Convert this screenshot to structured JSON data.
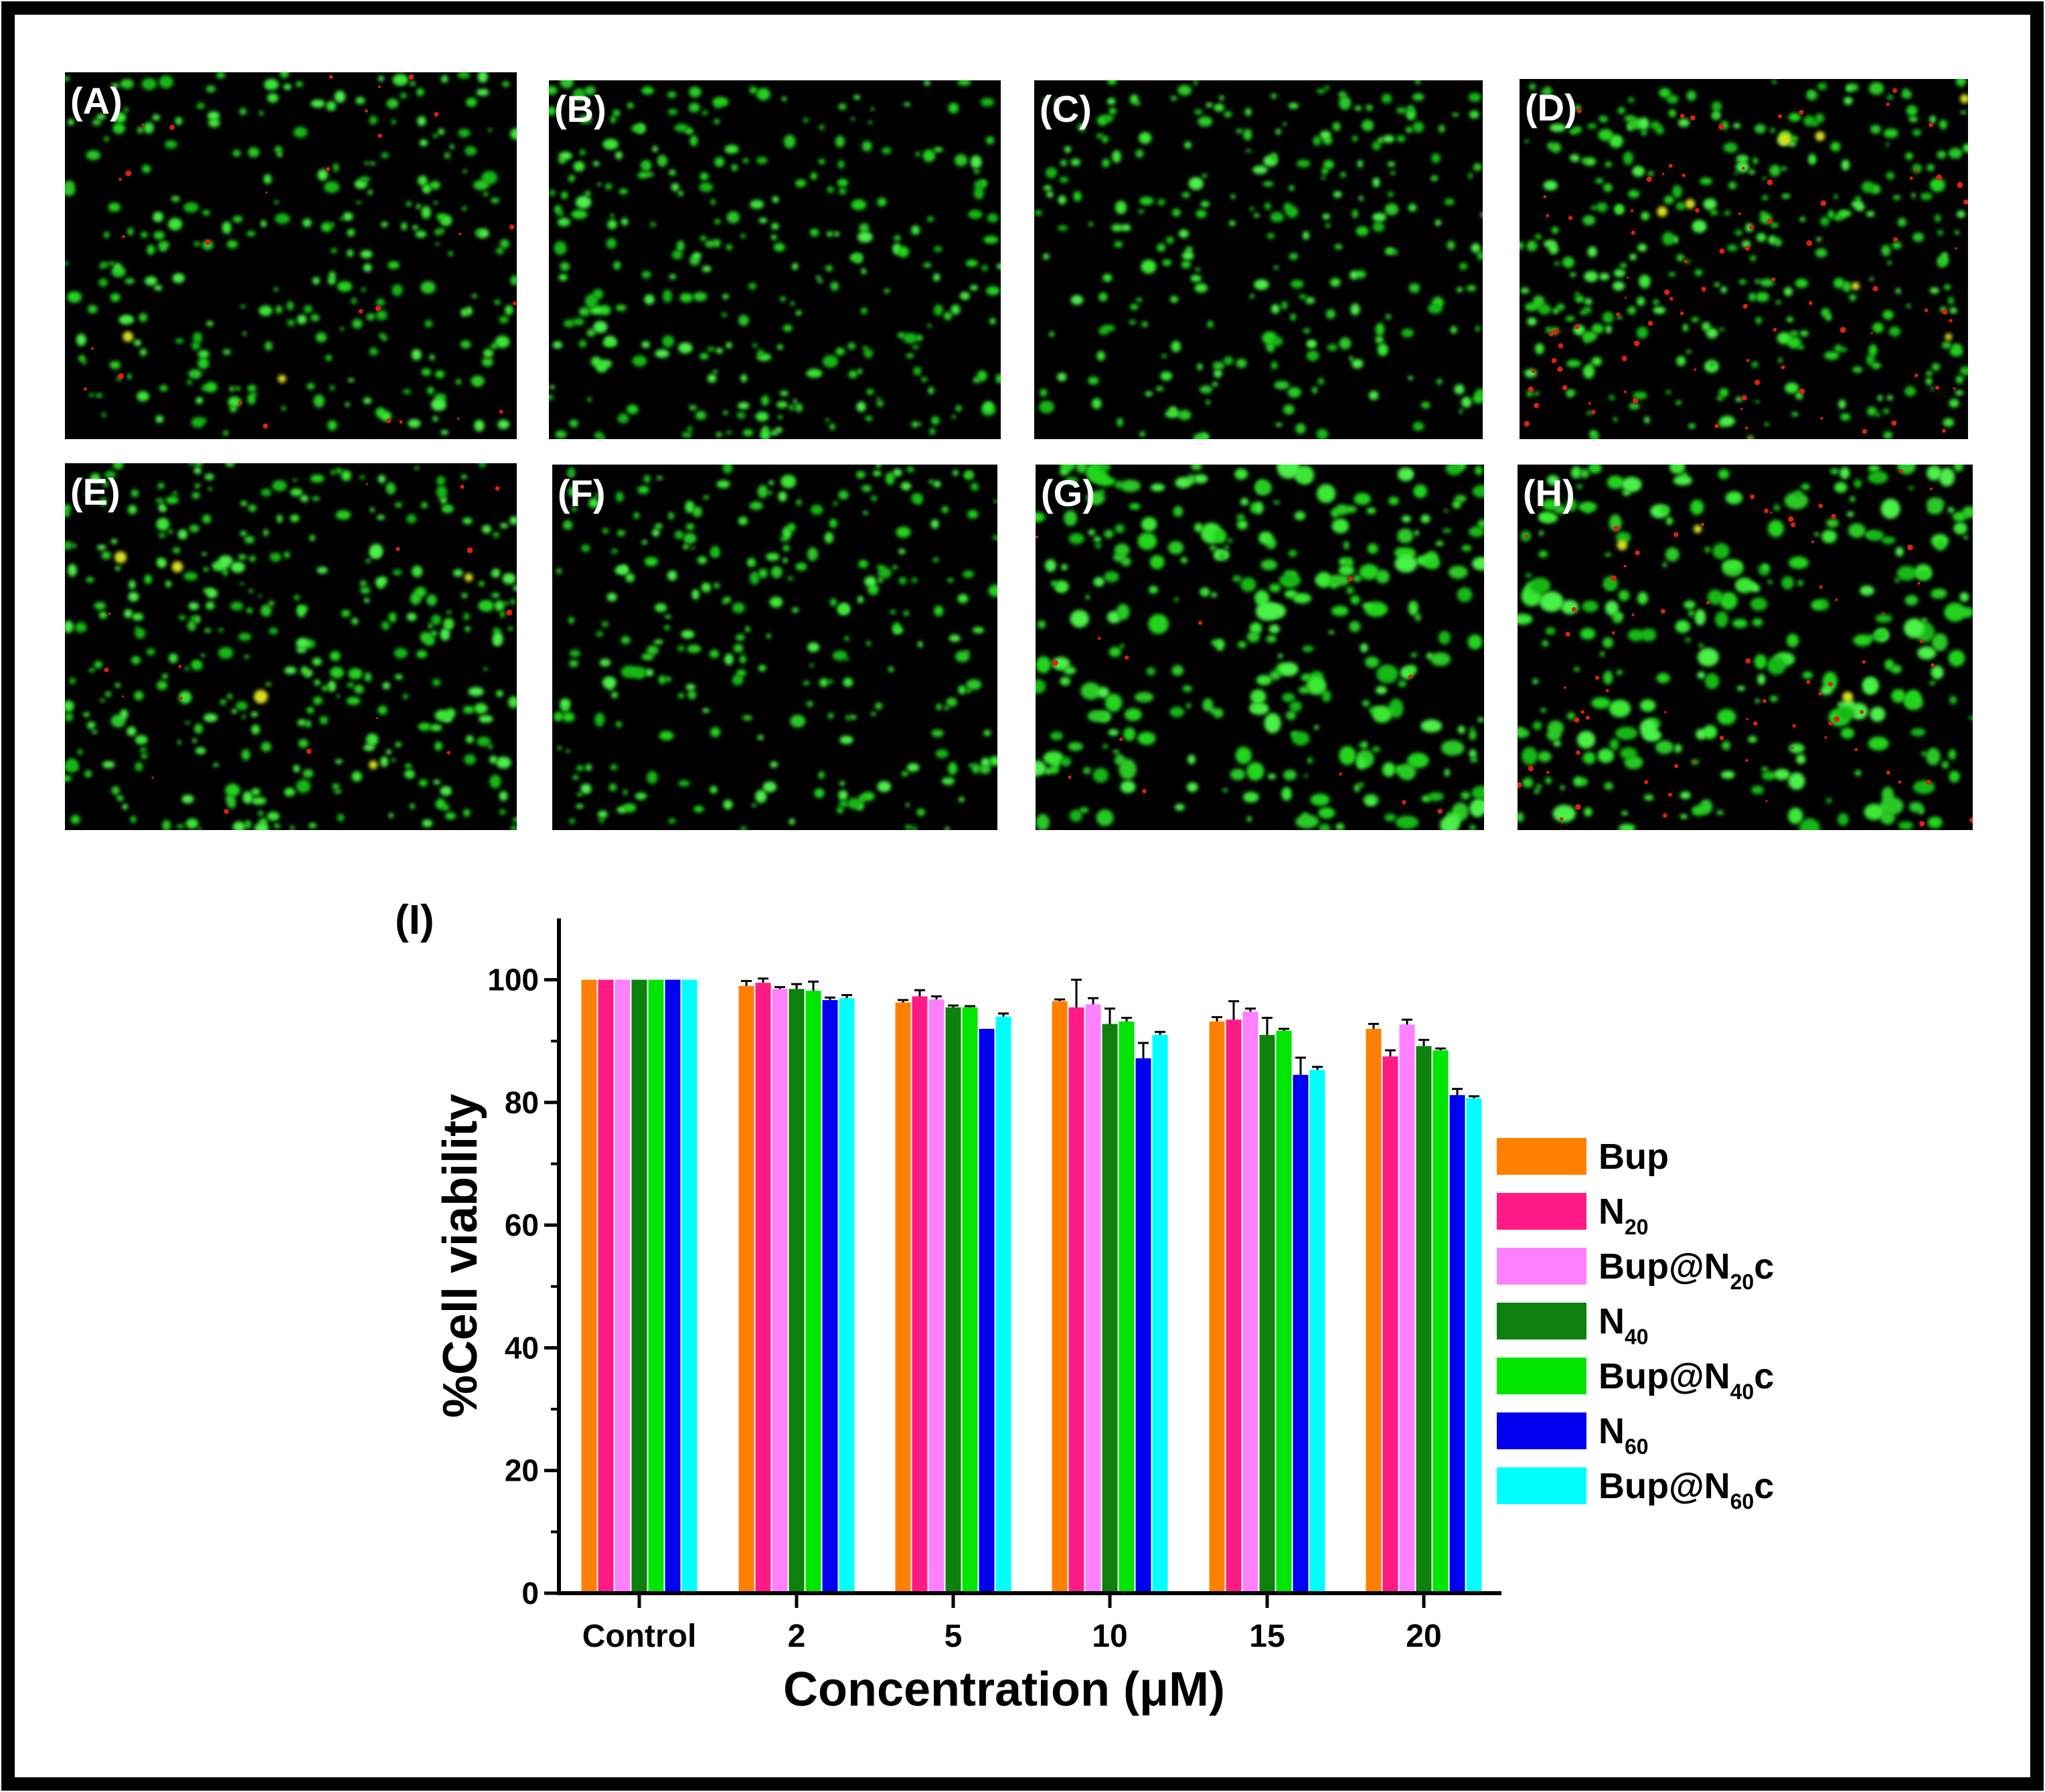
{
  "panels": [
    {
      "label": "(A)",
      "green": 1.0,
      "red": 0.18,
      "yellow": 0.03
    },
    {
      "label": "(B)",
      "green": 1.05,
      "red": 0.0,
      "yellow": 0.0
    },
    {
      "label": "(C)",
      "green": 0.95,
      "red": 0.0,
      "yellow": 0.0
    },
    {
      "label": "(D)",
      "green": 1.2,
      "red": 0.55,
      "yellow": 0.12
    },
    {
      "label": "(E)",
      "green": 1.3,
      "red": 0.1,
      "yellow": 0.08
    },
    {
      "label": "(F)",
      "green": 1.0,
      "red": 0.0,
      "yellow": 0.0
    },
    {
      "label": "(G)",
      "green": 1.15,
      "red": 0.08,
      "yellow": 0.0
    },
    {
      "label": "(H)",
      "green": 1.0,
      "red": 0.45,
      "yellow": 0.05
    }
  ],
  "chart_data": {
    "type": "bar",
    "panel_label": "(I)",
    "xlabel": "Concentration (μM)",
    "ylabel": "%Cell viability",
    "categories": [
      "Control",
      "2",
      "5",
      "10",
      "15",
      "20"
    ],
    "ylim": [
      0,
      110
    ],
    "yticks": [
      0,
      20,
      40,
      60,
      80,
      100
    ],
    "legend_position": "right",
    "series": [
      {
        "name": "Bup",
        "label_main": "Bup",
        "label_sub": "",
        "label_suffix": "",
        "color": "#ff8000",
        "values": [
          100,
          99.0,
          96.3,
          96.5,
          93.2,
          92.0
        ],
        "errors": [
          0,
          0.8,
          0.4,
          0.3,
          0.7,
          0.8
        ]
      },
      {
        "name": "N20",
        "label_main": "N",
        "label_sub": "20",
        "label_suffix": "",
        "color": "#ff1a85",
        "values": [
          100,
          99.5,
          97.3,
          95.5,
          93.5,
          87.5
        ],
        "errors": [
          0,
          0.7,
          1.0,
          4.5,
          3.0,
          1.0
        ]
      },
      {
        "name": "Bup@N20c",
        "label_main": "Bup@N",
        "label_sub": "20",
        "label_suffix": "c",
        "color": "#ff80ff",
        "values": [
          100,
          98.5,
          96.8,
          96.0,
          94.8,
          92.7
        ],
        "errors": [
          0,
          0.3,
          0.5,
          1.0,
          0.5,
          0.8
        ]
      },
      {
        "name": "N40",
        "label_main": "N",
        "label_sub": "40",
        "label_suffix": "",
        "color": "#0d800d",
        "values": [
          100,
          98.5,
          95.5,
          92.8,
          91.0,
          89.2
        ],
        "errors": [
          0,
          0.8,
          0.3,
          2.5,
          2.8,
          1.0
        ]
      },
      {
        "name": "Bup@N40c",
        "label_main": "Bup@N",
        "label_sub": "40",
        "label_suffix": "c",
        "color": "#00e600",
        "values": [
          100,
          98.2,
          95.5,
          93.2,
          91.7,
          88.5
        ],
        "errors": [
          0,
          1.5,
          0.2,
          0.6,
          0.3,
          0.3
        ]
      },
      {
        "name": "N60",
        "label_main": "N",
        "label_sub": "60",
        "label_suffix": "",
        "color": "#0000f0",
        "values": [
          100,
          96.7,
          92.0,
          87.2,
          84.5,
          81.2
        ],
        "errors": [
          0,
          0.4,
          0,
          2.5,
          2.8,
          1.0
        ]
      },
      {
        "name": "Bup@N60c",
        "label_main": "Bup@N",
        "label_sub": "60",
        "label_suffix": "c",
        "color": "#00ffff",
        "values": [
          100,
          97.0,
          94.0,
          91.0,
          85.3,
          80.7
        ],
        "errors": [
          0,
          0.5,
          0.5,
          0.5,
          0.5,
          0.3
        ]
      }
    ]
  }
}
